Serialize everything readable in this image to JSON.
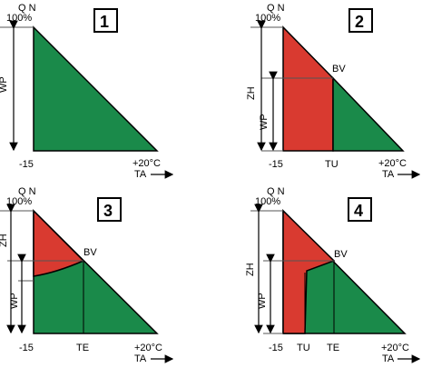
{
  "colors": {
    "heat_pump": "#1a8a4a",
    "additional_heater": "#d93a30",
    "outline": "#000000",
    "guide": "#555555"
  },
  "panels": [
    {
      "number": "1",
      "axis_top": "Q N",
      "percent": "100%",
      "left_label_lower": "WP",
      "left_label_upper": "",
      "point_label": "",
      "x_start": "-15",
      "x_mid1": "",
      "x_mid2": "",
      "x_end": "+20°C",
      "ta": "TA"
    },
    {
      "number": "2",
      "axis_top": "Q N",
      "percent": "100%",
      "left_label_lower": "WP",
      "left_label_upper": "ZH",
      "point_label": "BV",
      "x_start": "-15",
      "x_mid1": "TU",
      "x_mid2": "",
      "x_end": "+20°C",
      "ta": "TA"
    },
    {
      "number": "3",
      "axis_top": "Q N",
      "percent": "100%",
      "left_label_lower": "WP",
      "left_label_upper": "ZH",
      "point_label": "BV",
      "x_start": "-15",
      "x_mid1": "TE",
      "x_mid2": "",
      "x_end": "+20°C",
      "ta": "TA"
    },
    {
      "number": "4",
      "axis_top": "Q N",
      "percent": "100%",
      "left_label_lower": "WP",
      "left_label_upper": "ZH",
      "point_label": "BV",
      "x_start": "-15",
      "x_mid1": "TU",
      "x_mid2": "TE",
      "x_end": "+20°C",
      "ta": "TA"
    }
  ]
}
